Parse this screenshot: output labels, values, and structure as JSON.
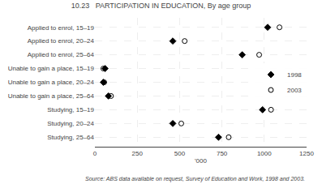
{
  "chart_data": {
    "type": "dot",
    "title": "10.23   PARTICIPATION IN EDUCATION, By age group",
    "orientation": "horizontal",
    "categories": [
      "Applied to enrol, 15–19",
      "Applied to enrol, 20–24",
      "Applied to enrol, 25–64",
      "Unable to gain a place, 15–19",
      "Unable to gain a place, 20–24",
      "Unable to gain a place, 25–64",
      "Studying, 15–19",
      "Studying, 20–24",
      "Studying, 25–64"
    ],
    "series": [
      {
        "name": "1998",
        "color": "#000000",
        "marker": "diamond",
        "values": [
          1020,
          460,
          870,
          60,
          50,
          80,
          990,
          460,
          730
        ]
      },
      {
        "name": "2003",
        "color": "#000000",
        "marker": "circle-open",
        "values": [
          1090,
          530,
          970,
          50,
          55,
          95,
          1040,
          510,
          790
        ]
      }
    ],
    "xlabel": "'000",
    "xlim": [
      0,
      1250
    ],
    "xticks": [
      0,
      250,
      500,
      750,
      1000,
      1250
    ],
    "grid": true,
    "legend": "right",
    "annotations": [
      "Source: ABS data available on request, Survey of Education and Work, 1998 and 2003."
    ]
  }
}
